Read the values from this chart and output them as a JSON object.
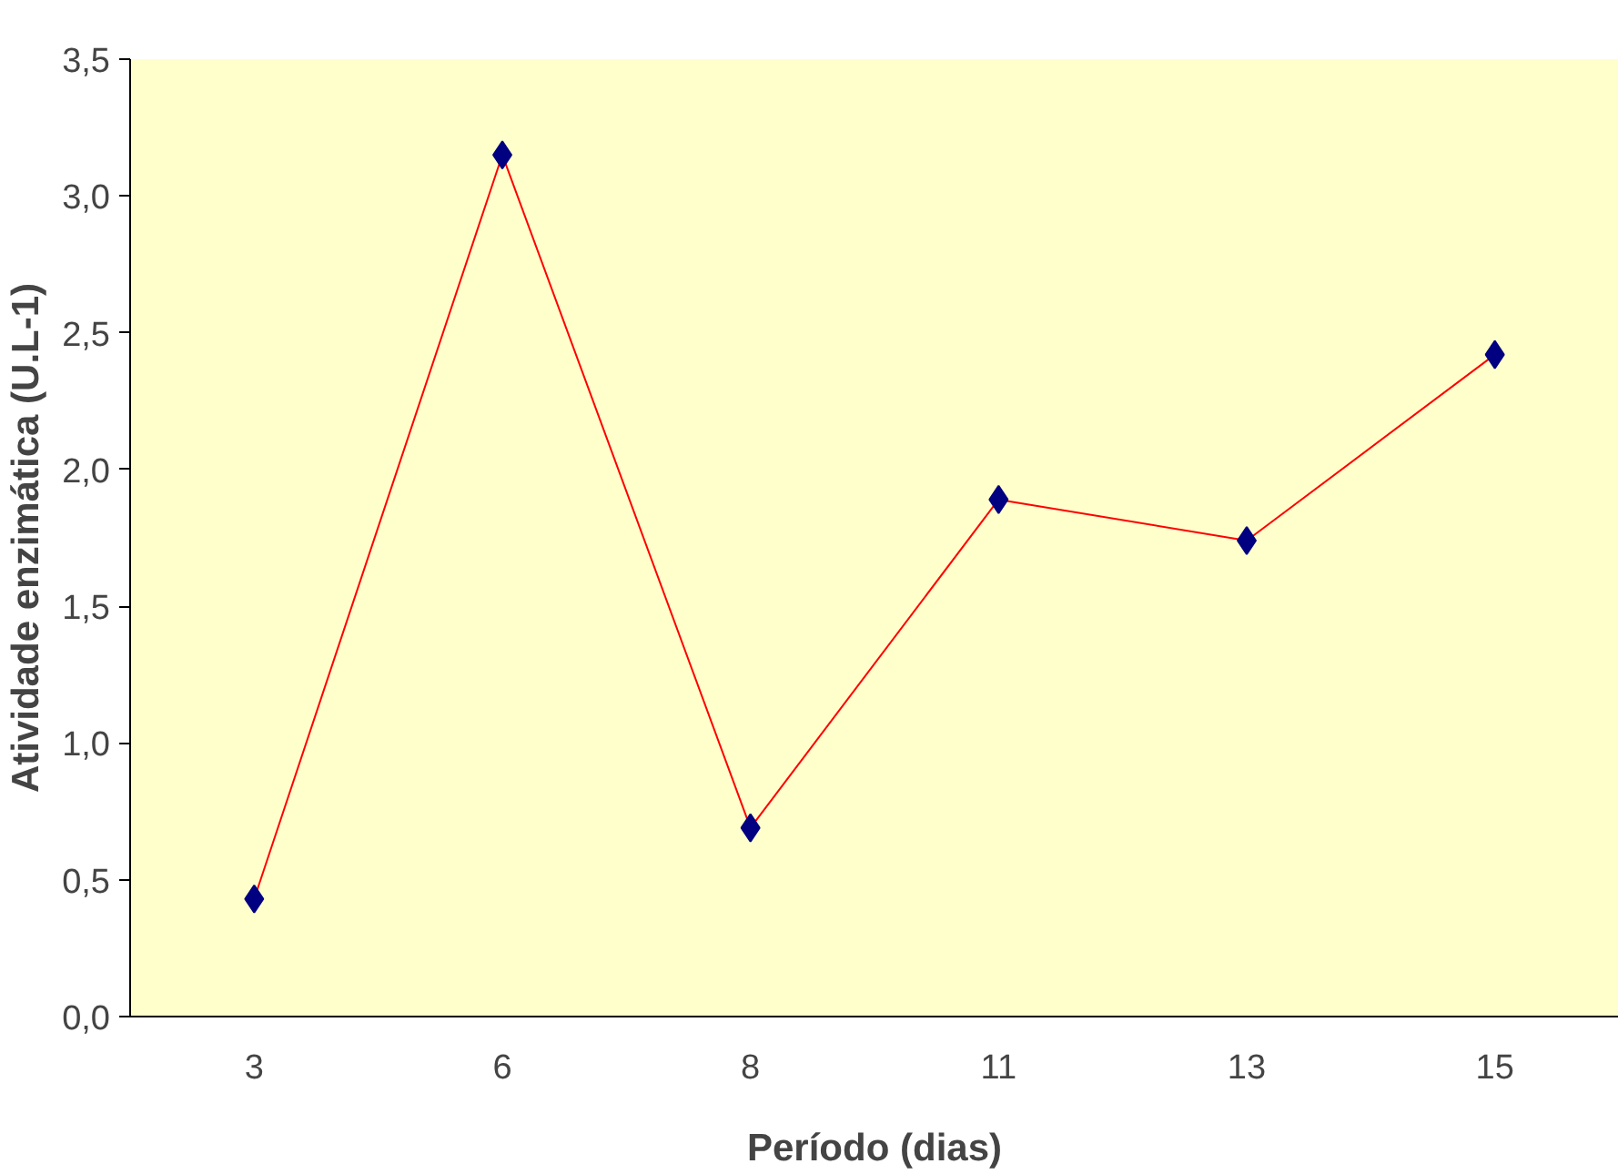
{
  "chart_data": {
    "type": "line",
    "xlabel": "Período (dias)",
    "ylabel": "Atividade enzimática (U.L-1)",
    "categories": [
      "3",
      "6",
      "8",
      "11",
      "13",
      "15"
    ],
    "series": [
      {
        "color": "#ff0000",
        "values": [
          0.43,
          3.15,
          0.69,
          1.89,
          1.74,
          2.42
        ]
      }
    ],
    "ylim": [
      0,
      3.5
    ],
    "yticks": [
      {
        "value": 0,
        "label": "0,0"
      },
      {
        "value": 0.5,
        "label": "0,5"
      },
      {
        "value": 1,
        "label": "1,0"
      },
      {
        "value": 1.5,
        "label": "1,5"
      },
      {
        "value": 2,
        "label": "2,0"
      },
      {
        "value": 2.5,
        "label": "2,5"
      },
      {
        "value": 3,
        "label": "3,0"
      },
      {
        "value": 3.5,
        "label": "3,5"
      }
    ],
    "marker": "diamond",
    "line_style": "solid"
  }
}
